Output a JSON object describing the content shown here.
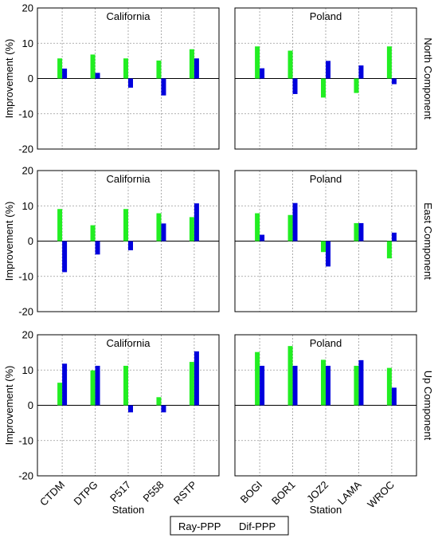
{
  "legend": {
    "items": [
      {
        "label": "Ray-PPP",
        "color": "#0000dd"
      },
      {
        "label": "Dif-PPP",
        "color": "#22ee22"
      }
    ]
  },
  "colors": {
    "ray": "#0000dd",
    "dif": "#22ee22",
    "grid": "#999999",
    "zero": "#000000"
  },
  "chart_data": [
    {
      "type": "bar",
      "title": "California",
      "row_label": "North Component",
      "ylabel": "Improvement (%)",
      "xlabel": "",
      "ylim": [
        -20,
        20
      ],
      "yticks": [
        20,
        10,
        0,
        -10,
        -20
      ],
      "grid": true,
      "categories": [
        "CTDM",
        "DTPG",
        "P517",
        "P558",
        "RSTP"
      ],
      "series": [
        {
          "name": "Dif-PPP",
          "values": [
            5.7,
            6.8,
            5.7,
            5.1,
            8.3
          ]
        },
        {
          "name": "Ray-PPP",
          "values": [
            2.8,
            1.6,
            -2.6,
            -4.8,
            5.7
          ]
        }
      ]
    },
    {
      "type": "bar",
      "title": "Poland",
      "row_label": "North Component",
      "ylabel": "",
      "xlabel": "",
      "ylim": [
        -20,
        20
      ],
      "yticks": [
        20,
        10,
        0,
        -10,
        -20
      ],
      "grid": true,
      "categories": [
        "BOGI",
        "BOR1",
        "JOZ2",
        "LAMA",
        "WROC"
      ],
      "series": [
        {
          "name": "Dif-PPP",
          "values": [
            9.1,
            7.9,
            -5.4,
            -4.1,
            9.1
          ]
        },
        {
          "name": "Ray-PPP",
          "values": [
            2.9,
            -4.4,
            5.0,
            3.7,
            -1.6
          ]
        }
      ]
    },
    {
      "type": "bar",
      "title": "California",
      "row_label": "East Component",
      "ylabel": "Improvement (%)",
      "xlabel": "",
      "ylim": [
        -20,
        20
      ],
      "yticks": [
        20,
        10,
        0,
        -10,
        -20
      ],
      "grid": true,
      "categories": [
        "CTDM",
        "DTPG",
        "P517",
        "P558",
        "RSTP"
      ],
      "series": [
        {
          "name": "Dif-PPP",
          "values": [
            9.1,
            4.5,
            9.1,
            7.9,
            6.8
          ]
        },
        {
          "name": "Ray-PPP",
          "values": [
            -8.8,
            -3.8,
            -2.6,
            5.0,
            10.7
          ]
        }
      ]
    },
    {
      "type": "bar",
      "title": "Poland",
      "row_label": "East Component",
      "ylabel": "",
      "xlabel": "",
      "ylim": [
        -20,
        20
      ],
      "yticks": [
        20,
        10,
        0,
        -10,
        -20
      ],
      "grid": true,
      "categories": [
        "BOGI",
        "BOR1",
        "JOZ2",
        "LAMA",
        "WROC"
      ],
      "series": [
        {
          "name": "Dif-PPP",
          "values": [
            7.9,
            7.4,
            -3.1,
            5.1,
            -4.9
          ]
        },
        {
          "name": "Ray-PPP",
          "values": [
            1.8,
            10.8,
            -7.2,
            5.1,
            2.4
          ]
        }
      ]
    },
    {
      "type": "bar",
      "title": "California",
      "row_label": "Up Component",
      "ylabel": "Improvement (%)",
      "xlabel": "Station",
      "ylim": [
        -20,
        20
      ],
      "yticks": [
        20,
        10,
        0,
        -10,
        -20
      ],
      "grid": true,
      "categories": [
        "CTDM",
        "DTPG",
        "P517",
        "P558",
        "RSTP"
      ],
      "series": [
        {
          "name": "Dif-PPP",
          "values": [
            6.4,
            9.9,
            11.2,
            2.3,
            12.3
          ]
        },
        {
          "name": "Ray-PPP",
          "values": [
            11.8,
            11.2,
            -2.0,
            -2.0,
            15.3
          ]
        }
      ]
    },
    {
      "type": "bar",
      "title": "Poland",
      "row_label": "Up Component",
      "ylabel": "",
      "xlabel": "Station",
      "ylim": [
        -20,
        20
      ],
      "yticks": [
        20,
        10,
        0,
        -10,
        -20
      ],
      "grid": true,
      "categories": [
        "BOGI",
        "BOR1",
        "JOZ2",
        "LAMA",
        "WROC"
      ],
      "series": [
        {
          "name": "Dif-PPP",
          "values": [
            15.1,
            16.8,
            12.9,
            11.2,
            10.6
          ]
        },
        {
          "name": "Ray-PPP",
          "values": [
            11.2,
            11.2,
            11.2,
            12.8,
            5.0
          ]
        }
      ]
    }
  ]
}
